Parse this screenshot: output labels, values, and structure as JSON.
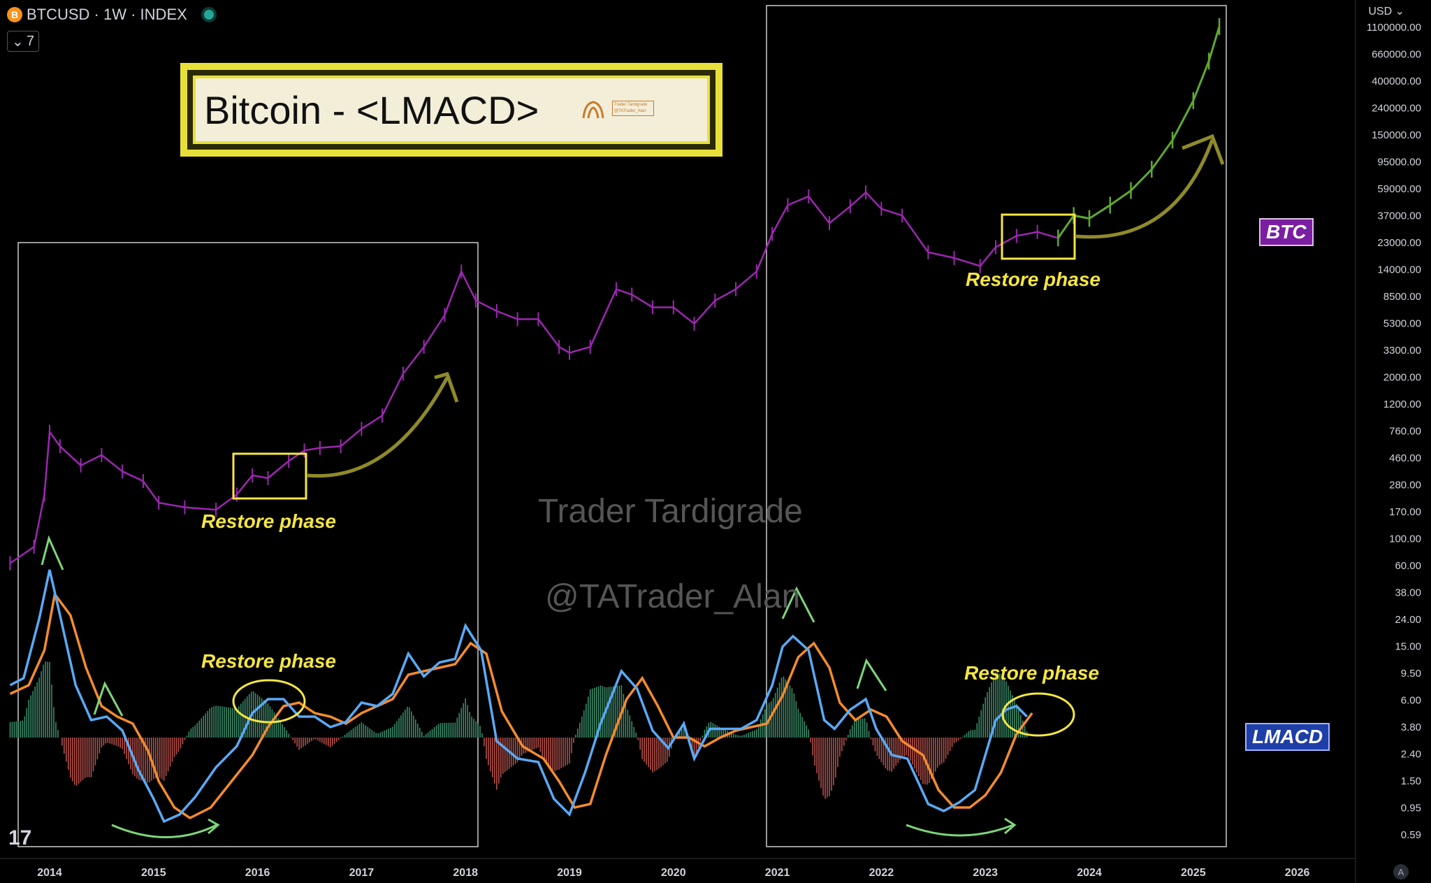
{
  "header": {
    "symbol_line": "BTCUSD · 1W · INDEX",
    "coin_glyph": "B",
    "collapse_count": "7",
    "currency": "USD"
  },
  "title_card": {
    "title": "Bitcoin - <LMACD>",
    "badge_line1": "Trader Tardigrade",
    "badge_line2": "@TATrader_Alan"
  },
  "tags": {
    "btc": "BTC",
    "lmacd": "LMACD"
  },
  "watermark": {
    "line1": "Trader Tardigrade",
    "line2": "@TATrader_Alan"
  },
  "annotations": [
    "Restore phase",
    "Restore phase",
    "Restore phase",
    "Restore phase"
  ],
  "chart_data": {
    "type": "line",
    "title": "Bitcoin - <LMACD>",
    "price_axis": {
      "scale": "log",
      "tick_labels": [
        "1100000.00",
        "660000.00",
        "400000.00",
        "240000.00",
        "150000.00",
        "95000.00",
        "59000.00",
        "37000.00",
        "23000.00",
        "14000.00",
        "8500.00",
        "5300.00",
        "3300.00",
        "2000.00",
        "1200.00",
        "760.00",
        "460.00",
        "280.00",
        "170.00",
        "100.00",
        "60.00",
        "38.00",
        "24.00",
        "15.00",
        "9.50",
        "6.00",
        "3.80",
        "2.40",
        "1.50",
        "0.95",
        "0.59"
      ]
    },
    "time_axis": {
      "tick_labels": [
        "2014",
        "2015",
        "2016",
        "2017",
        "2018",
        "2019",
        "2020",
        "2021",
        "2022",
        "2023",
        "2024",
        "2025",
        "2026"
      ],
      "range": [
        2013.6,
        2026.6
      ]
    },
    "colors": {
      "price": "#9c27b0",
      "projection": "#5fa832",
      "macd": "#5aa9f5",
      "signal": "#f38b2f",
      "hist_pos": "#3c8c6a",
      "hist_neg": "#b5514c",
      "annotation": "#f5e642",
      "arrow_green": "#7dd67a",
      "arrow_olive": "#8f8a2a"
    },
    "series": [
      {
        "name": "BTC",
        "x": [
          2013.62,
          2013.85,
          2013.95,
          2014.0,
          2014.1,
          2014.3,
          2014.5,
          2014.7,
          2014.9,
          2015.05,
          2015.3,
          2015.6,
          2015.8,
          2015.95,
          2016.1,
          2016.3,
          2016.45,
          2016.6,
          2016.8,
          2017.0,
          2017.2,
          2017.4,
          2017.6,
          2017.8,
          2017.96,
          2018.1,
          2018.3,
          2018.5,
          2018.7,
          2018.9,
          2019.0,
          2019.2,
          2019.45,
          2019.6,
          2019.8,
          2020.0,
          2020.2,
          2020.4,
          2020.6,
          2020.8,
          2020.95,
          2021.1,
          2021.3,
          2021.5,
          2021.7,
          2021.85,
          2022.0,
          2022.2,
          2022.45,
          2022.7,
          2022.95,
          2023.1,
          2023.3,
          2023.5,
          2023.7
        ],
        "values": [
          90,
          120,
          300,
          900,
          700,
          500,
          600,
          450,
          380,
          260,
          240,
          230,
          300,
          420,
          400,
          540,
          650,
          680,
          700,
          950,
          1200,
          2500,
          4000,
          7000,
          15000,
          9000,
          7500,
          6500,
          6500,
          4000,
          3600,
          4000,
          11000,
          10000,
          8000,
          8000,
          6000,
          9000,
          11000,
          15000,
          29000,
          48000,
          56000,
          35000,
          47000,
          60000,
          45000,
          40000,
          21000,
          19000,
          16500,
          23000,
          28000,
          30000,
          27000
        ]
      },
      {
        "name": "Projection",
        "x": [
          2023.7,
          2023.85,
          2024.0,
          2024.2,
          2024.4,
          2024.6,
          2024.8,
          2025.0,
          2025.15,
          2025.25
        ],
        "values": [
          27000,
          40000,
          38000,
          48000,
          62000,
          90000,
          150000,
          300000,
          600000,
          1100000
        ]
      },
      {
        "name": "LMACD",
        "x": [
          2013.62,
          2013.75,
          2013.9,
          2014.0,
          2014.1,
          2014.25,
          2014.4,
          2014.55,
          2014.7,
          2014.85,
          2015.0,
          2015.1,
          2015.25,
          2015.4,
          2015.6,
          2015.8,
          2015.95,
          2016.1,
          2016.25,
          2016.4,
          2016.55,
          2016.7,
          2016.85,
          2017.0,
          2017.15,
          2017.3,
          2017.45,
          2017.6,
          2017.75,
          2017.9,
          2018.0,
          2018.15,
          2018.3,
          2018.5,
          2018.7,
          2018.85,
          2019.0,
          2019.15,
          2019.3,
          2019.5,
          2019.65,
          2019.8,
          2019.95,
          2020.1,
          2020.2,
          2020.35,
          2020.5,
          2020.65,
          2020.8,
          2020.95,
          2021.05,
          2021.15,
          2021.3,
          2021.45,
          2021.55,
          2021.7,
          2021.85,
          2021.95,
          2022.1,
          2022.25,
          2022.45,
          2022.6,
          2022.75,
          2022.9,
          2023.0,
          2023.1,
          2023.2,
          2023.3,
          2023.4
        ],
        "values": [
          0.3,
          0.34,
          0.68,
          0.96,
          0.7,
          0.3,
          0.1,
          0.12,
          0.04,
          -0.18,
          -0.35,
          -0.48,
          -0.44,
          -0.34,
          -0.17,
          -0.05,
          0.14,
          0.22,
          0.22,
          0.12,
          0.12,
          0.06,
          0.09,
          0.2,
          0.18,
          0.25,
          0.48,
          0.35,
          0.43,
          0.45,
          0.64,
          0.5,
          -0.02,
          -0.12,
          -0.14,
          -0.35,
          -0.44,
          -0.2,
          0.08,
          0.38,
          0.28,
          0.04,
          -0.06,
          0.08,
          -0.12,
          0.05,
          0.05,
          0.05,
          0.1,
          0.3,
          0.52,
          0.58,
          0.5,
          0.1,
          0.05,
          0.16,
          0.22,
          0.05,
          -0.1,
          -0.12,
          -0.38,
          -0.42,
          -0.37,
          -0.3,
          -0.1,
          0.1,
          0.16,
          0.18,
          0.12
        ]
      },
      {
        "name": "Signal",
        "x": [
          2013.62,
          2013.8,
          2013.95,
          2014.05,
          2014.2,
          2014.35,
          2014.5,
          2014.65,
          2014.8,
          2014.95,
          2015.05,
          2015.2,
          2015.35,
          2015.55,
          2015.75,
          2015.95,
          2016.1,
          2016.25,
          2016.4,
          2016.55,
          2016.7,
          2016.85,
          2017.0,
          2017.15,
          2017.3,
          2017.45,
          2017.6,
          2017.75,
          2017.9,
          2018.05,
          2018.2,
          2018.35,
          2018.55,
          2018.75,
          2018.9,
          2019.05,
          2019.2,
          2019.35,
          2019.55,
          2019.7,
          2019.85,
          2020.0,
          2020.15,
          2020.3,
          2020.45,
          2020.6,
          2020.75,
          2020.9,
          2021.05,
          2021.2,
          2021.35,
          2021.5,
          2021.6,
          2021.75,
          2021.9,
          2022.05,
          2022.2,
          2022.4,
          2022.55,
          2022.7,
          2022.85,
          2023.0,
          2023.15,
          2023.3,
          2023.45
        ],
        "values": [
          0.25,
          0.3,
          0.5,
          0.82,
          0.7,
          0.4,
          0.18,
          0.12,
          0.08,
          -0.08,
          -0.25,
          -0.4,
          -0.46,
          -0.4,
          -0.25,
          -0.1,
          0.06,
          0.18,
          0.2,
          0.14,
          0.12,
          0.08,
          0.14,
          0.18,
          0.22,
          0.36,
          0.38,
          0.4,
          0.42,
          0.54,
          0.48,
          0.15,
          -0.05,
          -0.12,
          -0.25,
          -0.4,
          -0.38,
          -0.1,
          0.22,
          0.34,
          0.18,
          0.0,
          0.0,
          -0.05,
          0.0,
          0.04,
          0.06,
          0.08,
          0.24,
          0.46,
          0.54,
          0.4,
          0.2,
          0.1,
          0.16,
          0.12,
          -0.02,
          -0.1,
          -0.3,
          -0.4,
          -0.4,
          -0.33,
          -0.2,
          0.02,
          0.14
        ]
      }
    ]
  }
}
